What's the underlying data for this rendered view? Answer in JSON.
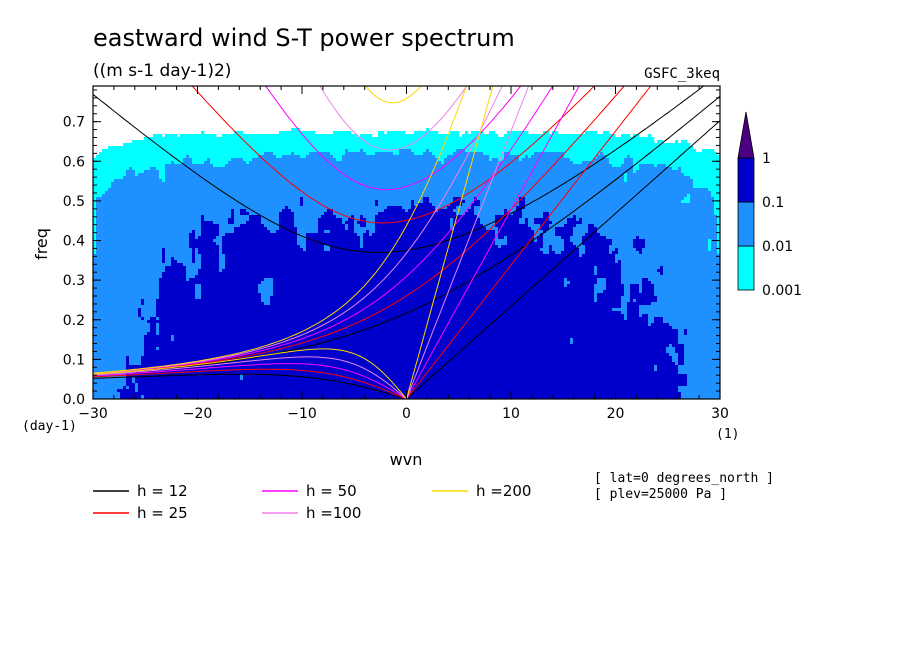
{
  "chart_data": {
    "type": "contour",
    "title": "eastward wind S-T power spectrum",
    "units": "((m s-1 day-1)2)",
    "dataset": "GSFC_3keq",
    "xlabel": "wvn",
    "ylabel": "freq",
    "x_unit": "(1)",
    "y_unit": "(day-1)",
    "xlim": [
      -30,
      30
    ],
    "ylim": [
      0,
      0.79
    ],
    "x_ticks": [
      -30,
      -20,
      -10,
      0,
      10,
      20,
      30
    ],
    "y_ticks": [
      0.0,
      0.1,
      0.2,
      0.3,
      0.4,
      0.5,
      0.6,
      0.7
    ],
    "x_tick_labels": [
      "−30",
      "−20",
      "−10",
      "0",
      "10",
      "20",
      "30"
    ],
    "y_tick_labels": [
      "0.0",
      "0.1",
      "0.2",
      "0.3",
      "0.4",
      "0.5",
      "0.6",
      "0.7"
    ],
    "colorbar": {
      "levels": [
        0.001,
        0.01,
        0.1,
        1
      ],
      "labels": [
        "0.001",
        "0.01",
        "0.1",
        "1"
      ],
      "colors": [
        "#00ffff",
        "#1e90ff",
        "#0000cd",
        "#4b0082"
      ]
    },
    "dispersion_curves": [
      {
        "name": "h = 12",
        "h": 12,
        "color": "#000000"
      },
      {
        "name": "h = 25",
        "h": 25,
        "color": "#ff0000"
      },
      {
        "name": "h = 50",
        "h": 50,
        "color": "#ff00ff"
      },
      {
        "name": "h =100",
        "h": 100,
        "color": "#ee82ee"
      },
      {
        "name": "h =200",
        "h": 200,
        "color": "#ffd700"
      }
    ],
    "annotations": [
      "[ lat=0 degrees_north ]",
      "[ plev=25000 Pa ]"
    ]
  }
}
